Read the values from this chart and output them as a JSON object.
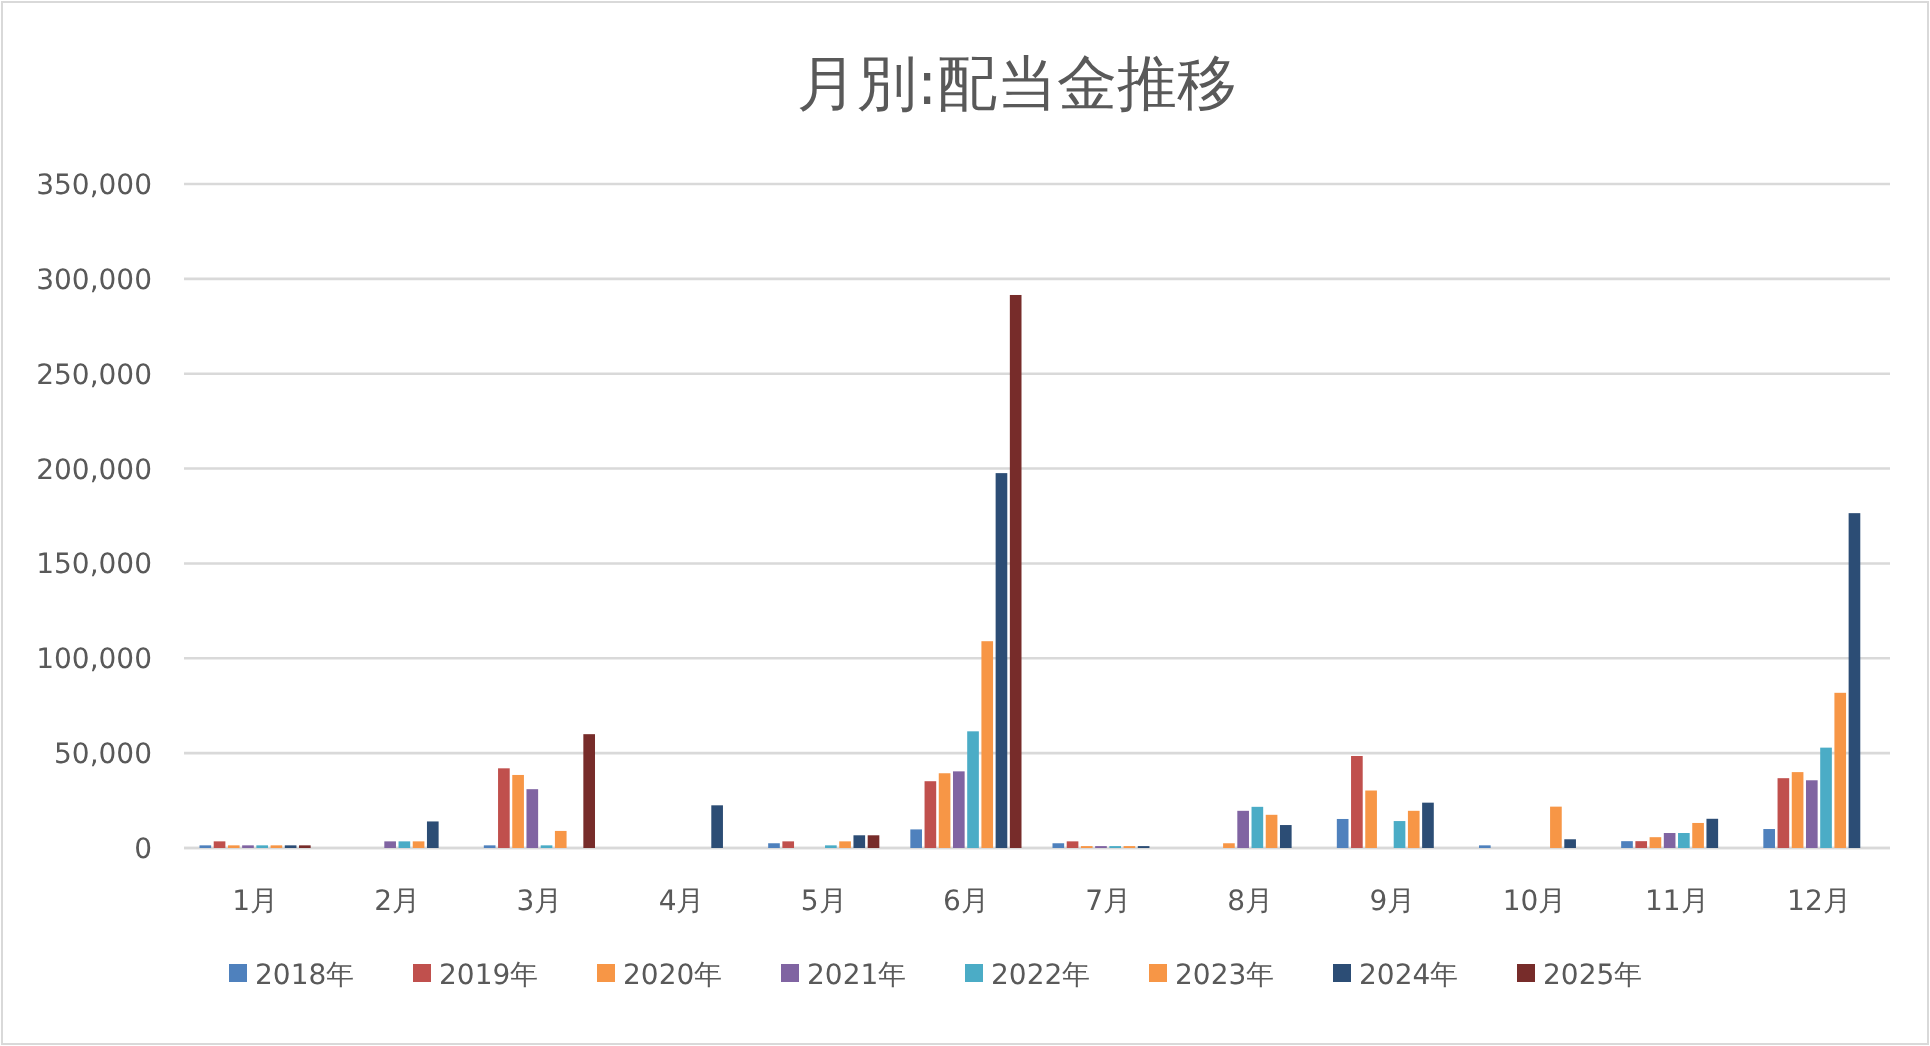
{
  "chart_data": {
    "type": "bar",
    "title": "月別:配当金推移",
    "categories": [
      "1月",
      "2月",
      "3月",
      "4月",
      "5月",
      "6月",
      "7月",
      "8月",
      "9月",
      "10月",
      "11月",
      "12月"
    ],
    "series": [
      {
        "name": "2018年",
        "color": "#4f81bd",
        "values": [
          1400,
          null,
          1400,
          null,
          2500,
          9800,
          2500,
          null,
          15300,
          1400,
          3600,
          10000
        ]
      },
      {
        "name": "2019年",
        "color": "#c0504d",
        "values": [
          3500,
          null,
          42000,
          null,
          3500,
          35200,
          3500,
          null,
          48500,
          null,
          3600,
          36800
        ]
      },
      {
        "name": "2020年",
        "color": "#f79646",
        "values": [
          1400,
          null,
          38500,
          null,
          null,
          39400,
          1000,
          2500,
          30300,
          null,
          5700,
          40000
        ]
      },
      {
        "name": "2021年",
        "color": "#8064a2",
        "values": [
          1400,
          3500,
          31000,
          null,
          null,
          40400,
          1000,
          19600,
          null,
          null,
          7900,
          35700
        ]
      },
      {
        "name": "2022年",
        "color": "#4bacc6",
        "values": [
          1400,
          3500,
          1400,
          null,
          1400,
          61500,
          1000,
          21700,
          14200,
          null,
          7900,
          52900
        ]
      },
      {
        "name": "2023年",
        "color": "#f79646",
        "values": [
          1400,
          3500,
          9000,
          null,
          3500,
          109000,
          1000,
          17500,
          19600,
          21800,
          13200,
          81800
        ]
      },
      {
        "name": "2024年",
        "color": "#2c4d75",
        "values": [
          1400,
          14000,
          null,
          22500,
          6700,
          197600,
          1000,
          12100,
          23900,
          4600,
          15400,
          176500
        ]
      },
      {
        "name": "2025年",
        "color": "#772c2a",
        "values": [
          1400,
          null,
          60000,
          null,
          6700,
          291500,
          null,
          null,
          null,
          null,
          null,
          null
        ]
      }
    ],
    "ylim": [
      0,
      350000
    ],
    "yticks": [
      0,
      {
        "value": 50000,
        "label": "50,000"
      },
      {
        "value": 100000,
        "label": "100,000"
      },
      {
        "value": 150000,
        "label": "150,000"
      },
      {
        "value": 200000,
        "label": "200,000"
      },
      {
        "value": 250000,
        "label": "250,000"
      },
      {
        "value": 300000,
        "label": "300,000"
      },
      {
        "value": 350000,
        "label": "350,000"
      }
    ],
    "grid": "y",
    "legend": "bottom"
  }
}
